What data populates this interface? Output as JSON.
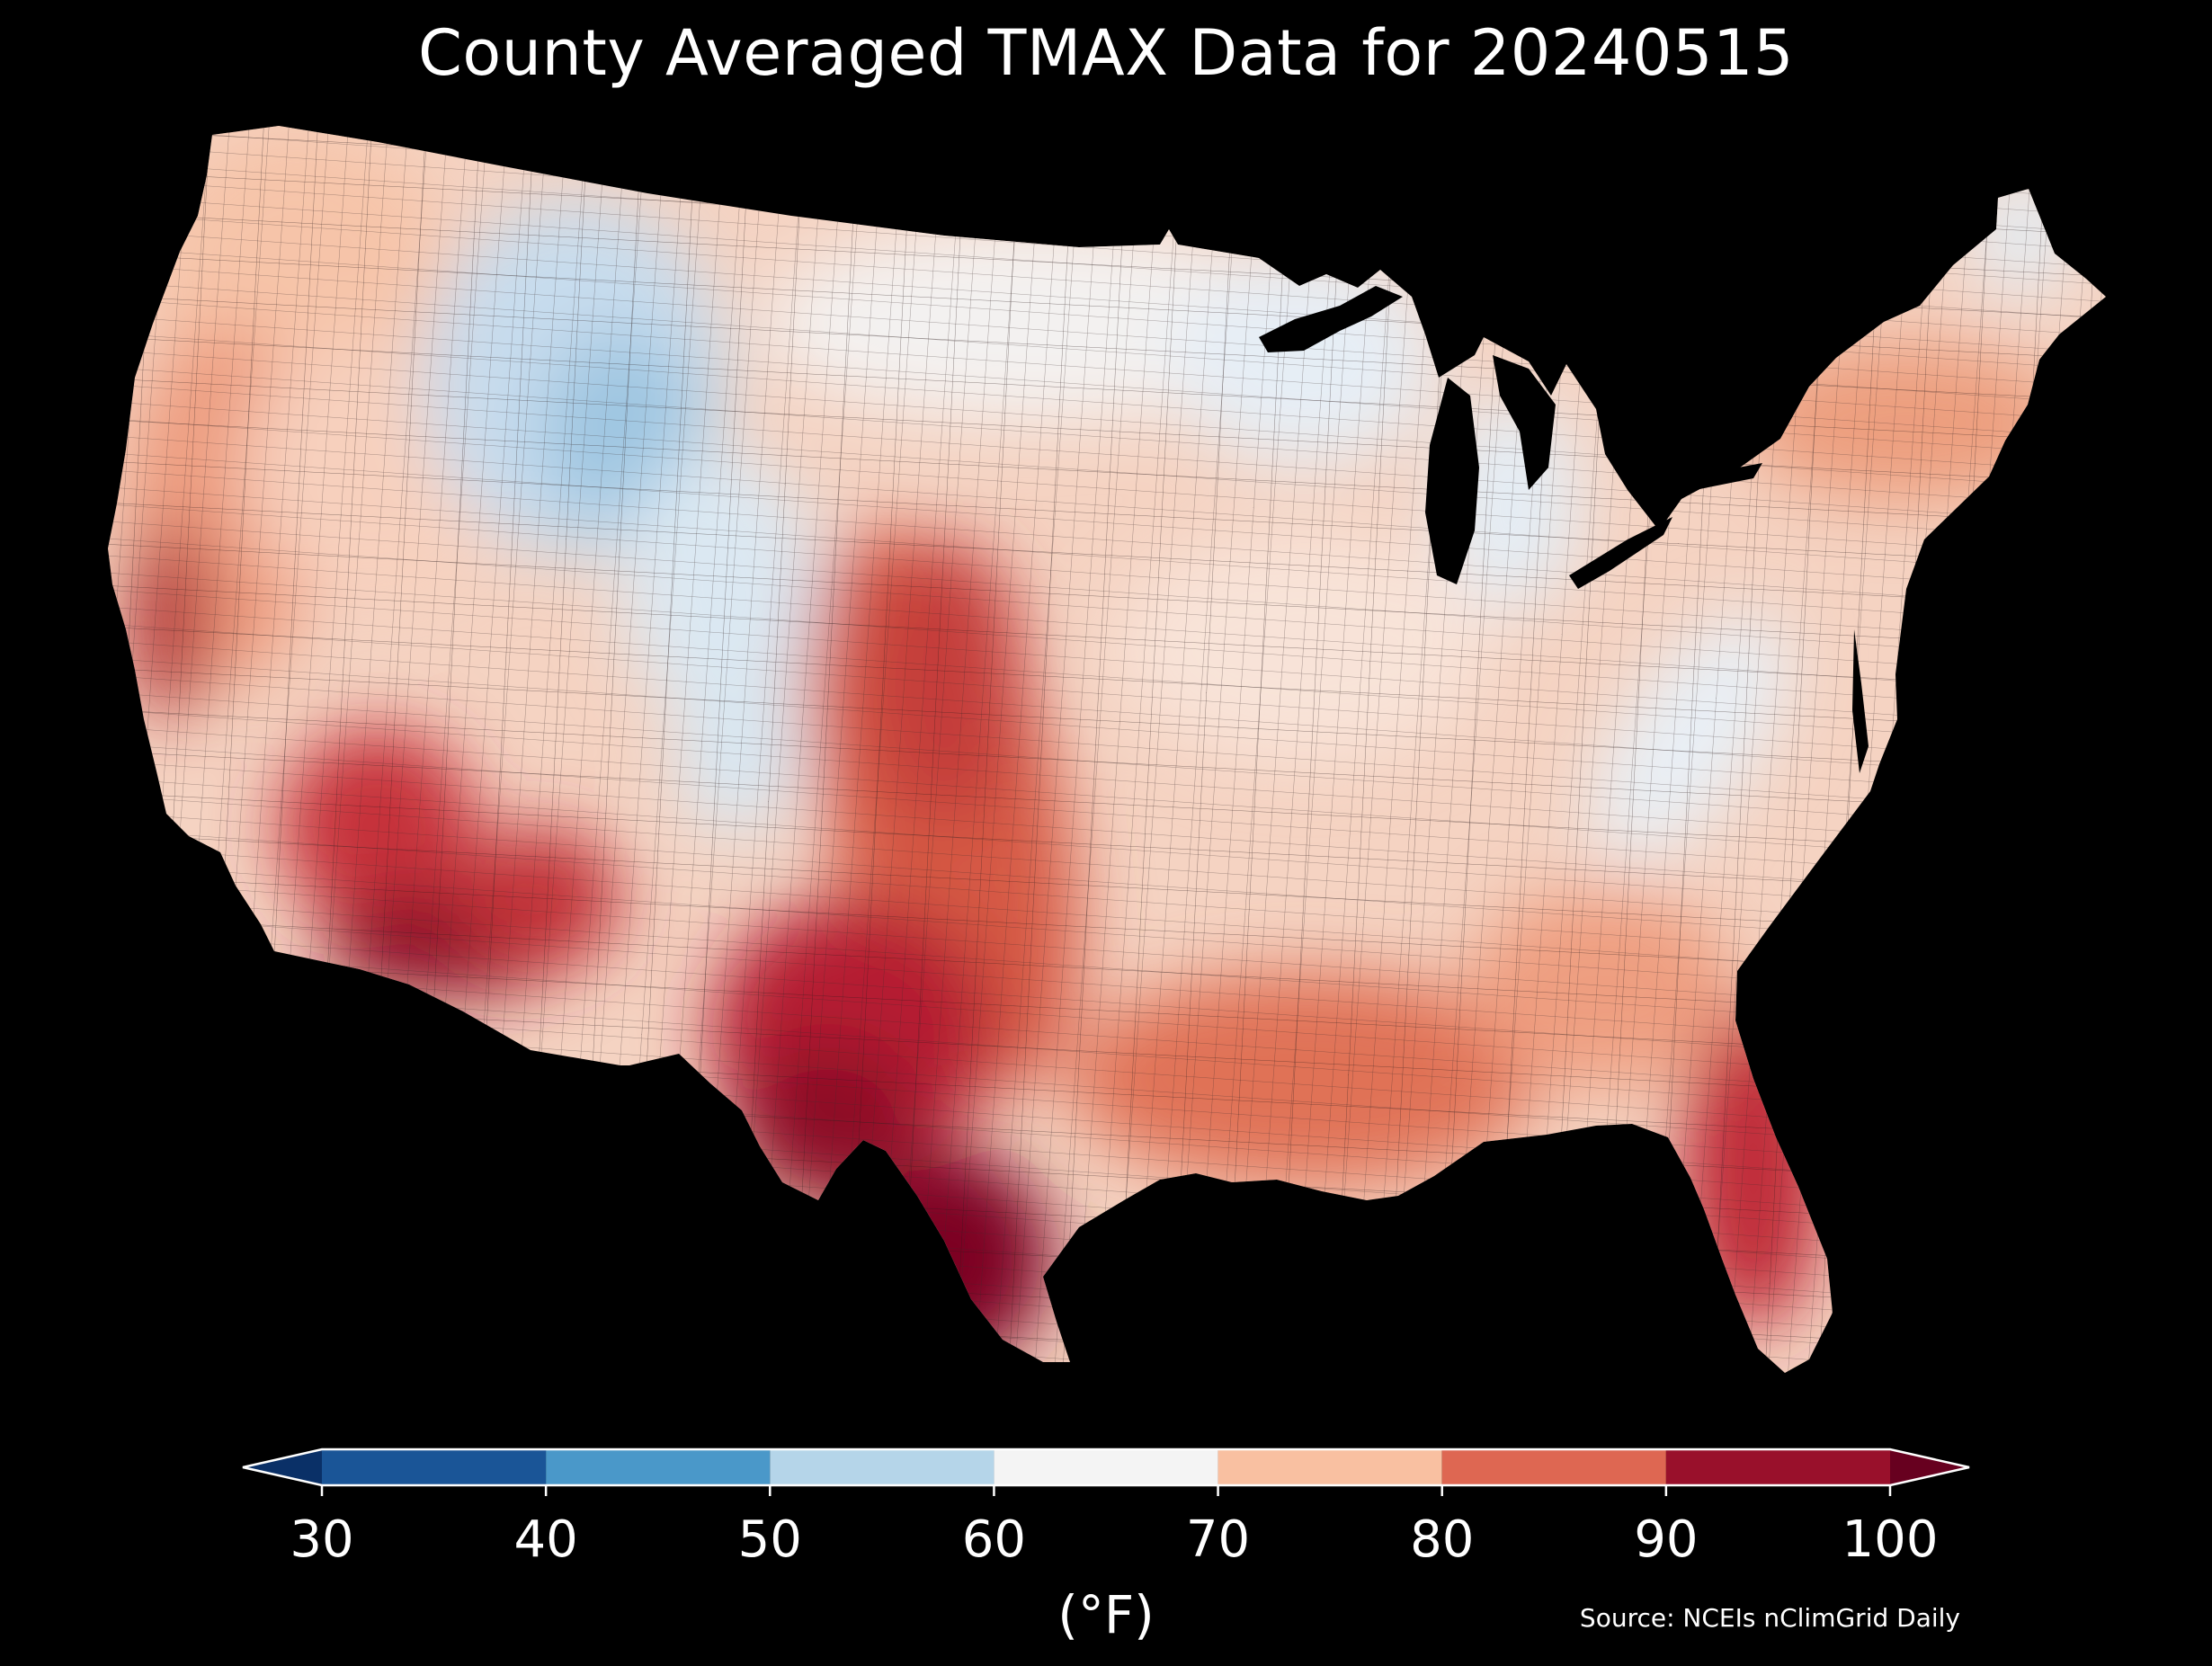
{
  "title": "County Averaged TMAX Data for 20240515",
  "colorbar": {
    "unit_label": "(°F)",
    "ticks": [
      "30",
      "40",
      "50",
      "60",
      "70",
      "80",
      "90",
      "100"
    ],
    "bins": [
      {
        "from": 30,
        "to": 40,
        "color": "#1a5597"
      },
      {
        "from": 40,
        "to": 50,
        "color": "#4a98c9"
      },
      {
        "from": 50,
        "to": 60,
        "color": "#b5d5e9"
      },
      {
        "from": 60,
        "to": 70,
        "color": "#f4f4f4"
      },
      {
        "from": 70,
        "to": 80,
        "color": "#f9c0a1"
      },
      {
        "from": 80,
        "to": 90,
        "color": "#de6752"
      },
      {
        "from": 90,
        "to": 100,
        "color": "#99102b"
      }
    ],
    "under_color": "#0a3067",
    "over_color": "#67001f",
    "extend": "both"
  },
  "source": "Source: NCEIs nClimGrid Daily",
  "map": {
    "region": "Contiguous United States",
    "level": "county",
    "variable": "TMAX",
    "regional_values": [
      {
        "region": "Pacific Northwest coast",
        "approx_tmax": 72
      },
      {
        "region": "Northern Rockies (MT/WY)",
        "approx_tmax": 57
      },
      {
        "region": "Colorado Rockies",
        "approx_tmax": 60
      },
      {
        "region": "Northern Plains / Upper Midwest",
        "approx_tmax": 66
      },
      {
        "region": "Upper Michigan",
        "approx_tmax": 61
      },
      {
        "region": "Northern Maine",
        "approx_tmax": 57
      },
      {
        "region": "Northeast",
        "approx_tmax": 76
      },
      {
        "region": "Appalachians",
        "approx_tmax": 63
      },
      {
        "region": "Central Valley CA",
        "approx_tmax": 88
      },
      {
        "region": "Desert Southwest",
        "approx_tmax": 96
      },
      {
        "region": "West Texas",
        "approx_tmax": 92
      },
      {
        "region": "South Texas",
        "approx_tmax": 97
      },
      {
        "region": "Florida",
        "approx_tmax": 90
      },
      {
        "region": "Gulf Coast",
        "approx_tmax": 85
      },
      {
        "region": "Southeast",
        "approx_tmax": 80
      }
    ]
  }
}
